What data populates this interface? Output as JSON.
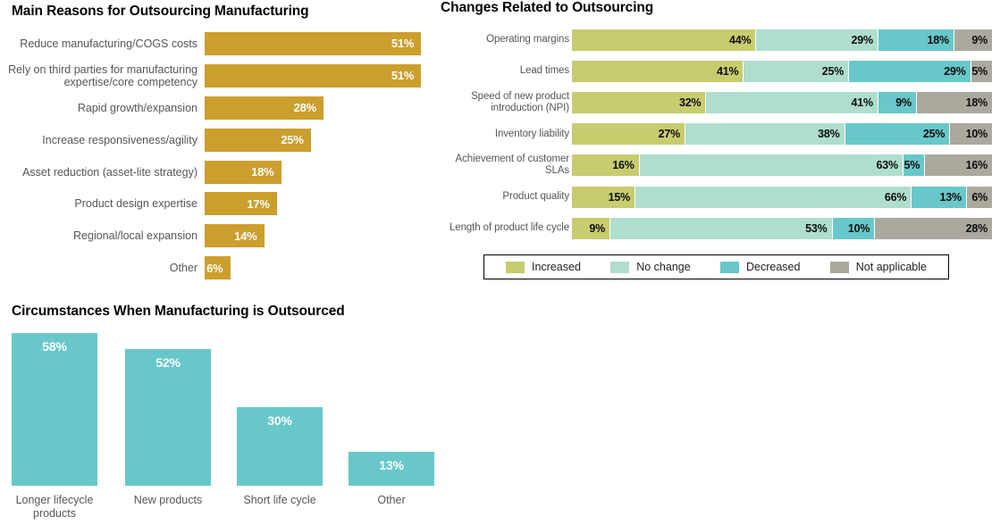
{
  "page": {
    "background": "#FFFFFF"
  },
  "colors": {
    "gold": "#CB9F2D",
    "olive_increased": "#C7CC6F",
    "mint_no_change": "#AFDECC",
    "teal_decreased": "#68C8C9",
    "gray_not_applicable": "#ABA89E",
    "axis_label_text": "#55565A",
    "title_text": "#000000",
    "value_text_light": "#FFFFFF",
    "value_text_dark": "#0C0C0C"
  },
  "chart_data": [
    {
      "type": "bar",
      "orientation": "horizontal",
      "title": "Main Reasons for Outsourcing Manufacturing",
      "categories": [
        "Reduce manufacturing/COGS costs",
        "Rely on third parties for manufacturing expertise/core competency",
        "Rapid growth/expansion",
        "Increase responsiveness/agility",
        "Asset reduction (asset-lite strategy)",
        "Product design expertise",
        "Regional/local expansion",
        "Other"
      ],
      "values": [
        51,
        51,
        28,
        25,
        18,
        17,
        14,
        6
      ],
      "value_suffix": "%",
      "bar_color": "#CB9F2D",
      "value_label_position": "inside-end",
      "grid": false
    },
    {
      "type": "bar",
      "orientation": "horizontal",
      "stacked": true,
      "title": "Changes Related to Outsourcing",
      "categories": [
        "Operating margins",
        "Lead times",
        "Speed of new product introduction (NPI)",
        "Inventory liability",
        "Achievement of customer SLAs",
        "Product quality",
        "Length of product life cycle"
      ],
      "series": [
        {
          "name": "Increased",
          "color": "#C7CC6F",
          "values": [
            44,
            41,
            32,
            27,
            16,
            15,
            9
          ]
        },
        {
          "name": "No change",
          "color": "#AFDECC",
          "values": [
            29,
            25,
            41,
            38,
            63,
            66,
            53
          ]
        },
        {
          "name": "Decreased",
          "color": "#68C8C9",
          "values": [
            18,
            29,
            9,
            25,
            5,
            13,
            10
          ]
        },
        {
          "name": "Not applicable",
          "color": "#ABA89E",
          "values": [
            9,
            5,
            18,
            10,
            16,
            6,
            28
          ]
        }
      ],
      "value_suffix": "%",
      "xlim": [
        0,
        100
      ],
      "legend": {
        "position": "bottom",
        "labels": [
          "Increased",
          "No change",
          "Decreased",
          "Not applicable"
        ]
      },
      "grid": false
    },
    {
      "type": "bar",
      "orientation": "vertical",
      "title": "Circumstances When Manufacturing is Outsourced",
      "categories": [
        "Longer lifecycle products",
        "New products",
        "Short life cycle",
        "Other"
      ],
      "values": [
        58,
        52,
        30,
        13
      ],
      "value_suffix": "%",
      "bar_color": "#68C8C9",
      "value_label_position": "inside-top",
      "grid": false
    }
  ]
}
